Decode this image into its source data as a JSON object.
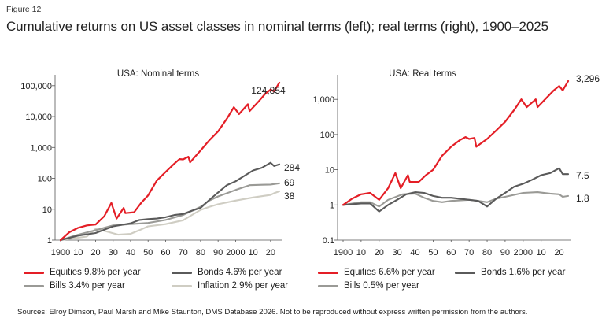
{
  "figure_label": "Figure 12",
  "title": "Cumulative returns on US asset classes in nominal terms (left); real terms (right), 1900–2025",
  "source": "Sources: Elroy Dimson, Paul Marsh and Mike Staunton, DMS Database 2026. Not to be reproduced without express written permission from the authors.",
  "colors": {
    "equities": "#e41e26",
    "bonds": "#5a5a5a",
    "bills": "#9a9a96",
    "inflation": "#cfcdc3",
    "axis": "#555555"
  },
  "chart_data": [
    {
      "type": "line",
      "title": "USA: Nominal terms",
      "yscale": "log",
      "ylim": [
        1,
        200000
      ],
      "xlim": [
        1900,
        2025
      ],
      "yticks": [
        1,
        10,
        100,
        1000,
        10000,
        100000
      ],
      "ytick_labels": [
        "1",
        "10",
        "100",
        "1,000",
        "10,000",
        "100,000"
      ],
      "xticks": [
        1900,
        1910,
        1920,
        1930,
        1940,
        1950,
        1960,
        1970,
        1980,
        1990,
        2000,
        2010,
        2020
      ],
      "xtick_labels": [
        "1900",
        "10",
        "20",
        "30",
        "40",
        "50",
        "60",
        "70",
        "80",
        "90",
        "2000",
        "10",
        "20"
      ],
      "series": [
        {
          "name": "Equities",
          "color_key": "equities",
          "end_label": "124,854",
          "points": [
            [
              1900,
              1
            ],
            [
              1905,
              1.8
            ],
            [
              1910,
              2.5
            ],
            [
              1915,
              3
            ],
            [
              1920,
              3.2
            ],
            [
              1925,
              6
            ],
            [
              1929,
              16
            ],
            [
              1932,
              5
            ],
            [
              1936,
              11
            ],
            [
              1937,
              7.5
            ],
            [
              1942,
              8
            ],
            [
              1946,
              16
            ],
            [
              1950,
              28
            ],
            [
              1955,
              85
            ],
            [
              1960,
              160
            ],
            [
              1965,
              300
            ],
            [
              1968,
              420
            ],
            [
              1970,
              410
            ],
            [
              1973,
              500
            ],
            [
              1974,
              330
            ],
            [
              1980,
              800
            ],
            [
              1985,
              1700
            ],
            [
              1990,
              3300
            ],
            [
              1995,
              8500
            ],
            [
              1999,
              20000
            ],
            [
              2002,
              12000
            ],
            [
              2007,
              25000
            ],
            [
              2008,
              15000
            ],
            [
              2013,
              30000
            ],
            [
              2017,
              55000
            ],
            [
              2020,
              75000
            ],
            [
              2022,
              65000
            ],
            [
              2025,
              124854
            ]
          ]
        },
        {
          "name": "Bonds",
          "color_key": "bonds",
          "end_label": "284",
          "points": [
            [
              1900,
              1
            ],
            [
              1910,
              1.4
            ],
            [
              1920,
              1.7
            ],
            [
              1930,
              2.8
            ],
            [
              1940,
              3.5
            ],
            [
              1945,
              4.5
            ],
            [
              1950,
              4.8
            ],
            [
              1955,
              5
            ],
            [
              1960,
              5.5
            ],
            [
              1965,
              6.5
            ],
            [
              1970,
              7
            ],
            [
              1975,
              9
            ],
            [
              1980,
              11
            ],
            [
              1985,
              20
            ],
            [
              1990,
              35
            ],
            [
              1995,
              60
            ],
            [
              2000,
              80
            ],
            [
              2005,
              120
            ],
            [
              2010,
              180
            ],
            [
              2015,
              220
            ],
            [
              2020,
              320
            ],
            [
              2022,
              250
            ],
            [
              2025,
              284
            ]
          ]
        },
        {
          "name": "Bills",
          "color_key": "bills",
          "end_label": "69",
          "points": [
            [
              1900,
              1
            ],
            [
              1910,
              1.5
            ],
            [
              1920,
              2.1
            ],
            [
              1930,
              3
            ],
            [
              1940,
              3.3
            ],
            [
              1950,
              3.6
            ],
            [
              1960,
              4.5
            ],
            [
              1970,
              6.5
            ],
            [
              1980,
              12
            ],
            [
              1985,
              19
            ],
            [
              1990,
              26
            ],
            [
              2000,
              42
            ],
            [
              2008,
              60
            ],
            [
              2015,
              62
            ],
            [
              2020,
              63
            ],
            [
              2025,
              69
            ]
          ]
        },
        {
          "name": "Inflation",
          "color_key": "inflation",
          "end_label": "38",
          "points": [
            [
              1900,
              1
            ],
            [
              1910,
              1.2
            ],
            [
              1915,
              1.3
            ],
            [
              1920,
              2.3
            ],
            [
              1925,
              2
            ],
            [
              1933,
              1.5
            ],
            [
              1940,
              1.6
            ],
            [
              1945,
              2.1
            ],
            [
              1950,
              2.8
            ],
            [
              1960,
              3.3
            ],
            [
              1970,
              4.4
            ],
            [
              1975,
              6.5
            ],
            [
              1980,
              9.5
            ],
            [
              1985,
              12
            ],
            [
              1990,
              14.5
            ],
            [
              2000,
              19
            ],
            [
              2010,
              24
            ],
            [
              2020,
              29
            ],
            [
              2022,
              33
            ],
            [
              2025,
              38
            ]
          ]
        }
      ]
    },
    {
      "type": "line",
      "title": "USA: Real terms",
      "yscale": "log",
      "ylim": [
        0.1,
        4500
      ],
      "xlim": [
        1900,
        2025
      ],
      "yticks": [
        0.1,
        1,
        10,
        100,
        1000
      ],
      "ytick_labels": [
        "0.1",
        "1",
        "10",
        "100",
        "1,000"
      ],
      "xticks": [
        1900,
        1910,
        1920,
        1930,
        1940,
        1950,
        1960,
        1970,
        1980,
        1990,
        2000,
        2010,
        2020
      ],
      "xtick_labels": [
        "1900",
        "10",
        "20",
        "30",
        "40",
        "50",
        "60",
        "70",
        "80",
        "90",
        "2000",
        "10",
        "20"
      ],
      "series": [
        {
          "name": "Equities",
          "color_key": "equities",
          "end_label": "3,296",
          "points": [
            [
              1900,
              1
            ],
            [
              1905,
              1.5
            ],
            [
              1910,
              2
            ],
            [
              1915,
              2.2
            ],
            [
              1920,
              1.4
            ],
            [
              1925,
              3
            ],
            [
              1929,
              8
            ],
            [
              1932,
              3
            ],
            [
              1936,
              7
            ],
            [
              1937,
              4.5
            ],
            [
              1942,
              4.5
            ],
            [
              1946,
              7
            ],
            [
              1950,
              10
            ],
            [
              1955,
              25
            ],
            [
              1960,
              45
            ],
            [
              1965,
              70
            ],
            [
              1968,
              85
            ],
            [
              1970,
              75
            ],
            [
              1973,
              80
            ],
            [
              1974,
              45
            ],
            [
              1980,
              75
            ],
            [
              1985,
              130
            ],
            [
              1990,
              230
            ],
            [
              1995,
              500
            ],
            [
              1999,
              1000
            ],
            [
              2002,
              600
            ],
            [
              2007,
              1000
            ],
            [
              2008,
              600
            ],
            [
              2013,
              1100
            ],
            [
              2017,
              1800
            ],
            [
              2020,
              2400
            ],
            [
              2022,
              1800
            ],
            [
              2025,
              3296
            ]
          ]
        },
        {
          "name": "Bonds",
          "color_key": "bonds",
          "end_label": "7.5",
          "points": [
            [
              1900,
              1
            ],
            [
              1910,
              1.1
            ],
            [
              1915,
              1.1
            ],
            [
              1920,
              0.65
            ],
            [
              1925,
              1
            ],
            [
              1930,
              1.4
            ],
            [
              1935,
              2
            ],
            [
              1940,
              2.3
            ],
            [
              1945,
              2.2
            ],
            [
              1950,
              1.8
            ],
            [
              1955,
              1.6
            ],
            [
              1960,
              1.6
            ],
            [
              1965,
              1.5
            ],
            [
              1970,
              1.4
            ],
            [
              1975,
              1.3
            ],
            [
              1980,
              0.9
            ],
            [
              1985,
              1.5
            ],
            [
              1990,
              2.2
            ],
            [
              1995,
              3.3
            ],
            [
              2000,
              4
            ],
            [
              2005,
              5.2
            ],
            [
              2010,
              7
            ],
            [
              2015,
              8
            ],
            [
              2020,
              11
            ],
            [
              2022,
              7.5
            ],
            [
              2025,
              7.5
            ]
          ]
        },
        {
          "name": "Bills",
          "color_key": "bills",
          "end_label": "1.8",
          "points": [
            [
              1900,
              1
            ],
            [
              1910,
              1.2
            ],
            [
              1915,
              1.2
            ],
            [
              1920,
              0.9
            ],
            [
              1925,
              1.4
            ],
            [
              1933,
              2
            ],
            [
              1940,
              2.1
            ],
            [
              1945,
              1.6
            ],
            [
              1950,
              1.3
            ],
            [
              1955,
              1.2
            ],
            [
              1960,
              1.3
            ],
            [
              1970,
              1.4
            ],
            [
              1975,
              1.3
            ],
            [
              1980,
              1.2
            ],
            [
              1985,
              1.5
            ],
            [
              1990,
              1.7
            ],
            [
              2000,
              2.2
            ],
            [
              2008,
              2.3
            ],
            [
              2015,
              2.1
            ],
            [
              2020,
              2
            ],
            [
              2022,
              1.7
            ],
            [
              2025,
              1.8
            ]
          ]
        }
      ]
    }
  ],
  "legends": [
    {
      "items": [
        {
          "text": "Equities  9.8% per year",
          "color_key": "equities"
        },
        {
          "text": "Bonds  4.6% per year",
          "color_key": "bonds"
        },
        {
          "text": "Bills  3.4% per year",
          "color_key": "bills"
        },
        {
          "text": "Inflation  2.9% per year",
          "color_key": "inflation"
        }
      ]
    },
    {
      "items": [
        {
          "text": "Equities  6.6% per year",
          "color_key": "equities"
        },
        {
          "text": "Bonds 1.6% per year",
          "color_key": "bonds"
        },
        {
          "text": "Bills 0.5% per year",
          "color_key": "bills"
        }
      ]
    }
  ]
}
